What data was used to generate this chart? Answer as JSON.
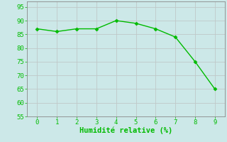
{
  "x": [
    0,
    1,
    2,
    3,
    4,
    5,
    6,
    7,
    8,
    9
  ],
  "y": [
    87,
    86,
    87,
    87,
    90,
    89,
    87,
    84,
    75,
    65
  ],
  "line_color": "#00bb00",
  "marker": "D",
  "marker_size": 2.5,
  "linewidth": 1.0,
  "xlabel": "Humidité relative (%)",
  "xlabel_color": "#00bb00",
  "xlabel_fontsize": 7.5,
  "xlim": [
    -0.5,
    9.5
  ],
  "ylim": [
    55,
    97
  ],
  "yticks": [
    55,
    60,
    65,
    70,
    75,
    80,
    85,
    90,
    95
  ],
  "xticks": [
    0,
    1,
    2,
    3,
    4,
    5,
    6,
    7,
    8,
    9
  ],
  "grid_color": "#c0c8c8",
  "bg_color": "#cce8e8",
  "tick_fontsize": 6.5,
  "tick_color": "#00bb00",
  "spine_color": "#888888"
}
